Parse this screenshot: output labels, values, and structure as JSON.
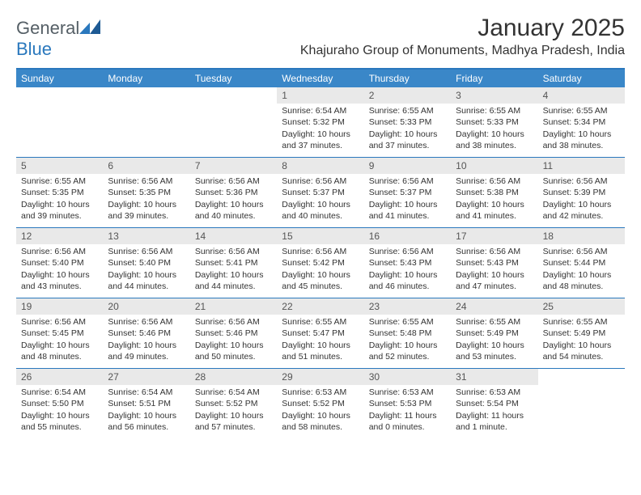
{
  "logo": {
    "text1": "General",
    "text2": "Blue"
  },
  "title": "January 2025",
  "location": "Khajuraho Group of Monuments, Madhya Pradesh, India",
  "colors": {
    "header_bg": "#3a87c8",
    "header_border": "#2a78bd",
    "daynum_bg": "#e9e9e9",
    "text": "#333333",
    "logo_gray": "#555f66",
    "logo_blue": "#2a78bd",
    "page_bg": "#ffffff"
  },
  "daysOfWeek": [
    "Sunday",
    "Monday",
    "Tuesday",
    "Wednesday",
    "Thursday",
    "Friday",
    "Saturday"
  ],
  "weeks": [
    [
      {
        "n": "",
        "lines": []
      },
      {
        "n": "",
        "lines": []
      },
      {
        "n": "",
        "lines": []
      },
      {
        "n": "1",
        "lines": [
          "Sunrise: 6:54 AM",
          "Sunset: 5:32 PM",
          "Daylight: 10 hours and 37 minutes."
        ]
      },
      {
        "n": "2",
        "lines": [
          "Sunrise: 6:55 AM",
          "Sunset: 5:33 PM",
          "Daylight: 10 hours and 37 minutes."
        ]
      },
      {
        "n": "3",
        "lines": [
          "Sunrise: 6:55 AM",
          "Sunset: 5:33 PM",
          "Daylight: 10 hours and 38 minutes."
        ]
      },
      {
        "n": "4",
        "lines": [
          "Sunrise: 6:55 AM",
          "Sunset: 5:34 PM",
          "Daylight: 10 hours and 38 minutes."
        ]
      }
    ],
    [
      {
        "n": "5",
        "lines": [
          "Sunrise: 6:55 AM",
          "Sunset: 5:35 PM",
          "Daylight: 10 hours and 39 minutes."
        ]
      },
      {
        "n": "6",
        "lines": [
          "Sunrise: 6:56 AM",
          "Sunset: 5:35 PM",
          "Daylight: 10 hours and 39 minutes."
        ]
      },
      {
        "n": "7",
        "lines": [
          "Sunrise: 6:56 AM",
          "Sunset: 5:36 PM",
          "Daylight: 10 hours and 40 minutes."
        ]
      },
      {
        "n": "8",
        "lines": [
          "Sunrise: 6:56 AM",
          "Sunset: 5:37 PM",
          "Daylight: 10 hours and 40 minutes."
        ]
      },
      {
        "n": "9",
        "lines": [
          "Sunrise: 6:56 AM",
          "Sunset: 5:37 PM",
          "Daylight: 10 hours and 41 minutes."
        ]
      },
      {
        "n": "10",
        "lines": [
          "Sunrise: 6:56 AM",
          "Sunset: 5:38 PM",
          "Daylight: 10 hours and 41 minutes."
        ]
      },
      {
        "n": "11",
        "lines": [
          "Sunrise: 6:56 AM",
          "Sunset: 5:39 PM",
          "Daylight: 10 hours and 42 minutes."
        ]
      }
    ],
    [
      {
        "n": "12",
        "lines": [
          "Sunrise: 6:56 AM",
          "Sunset: 5:40 PM",
          "Daylight: 10 hours and 43 minutes."
        ]
      },
      {
        "n": "13",
        "lines": [
          "Sunrise: 6:56 AM",
          "Sunset: 5:40 PM",
          "Daylight: 10 hours and 44 minutes."
        ]
      },
      {
        "n": "14",
        "lines": [
          "Sunrise: 6:56 AM",
          "Sunset: 5:41 PM",
          "Daylight: 10 hours and 44 minutes."
        ]
      },
      {
        "n": "15",
        "lines": [
          "Sunrise: 6:56 AM",
          "Sunset: 5:42 PM",
          "Daylight: 10 hours and 45 minutes."
        ]
      },
      {
        "n": "16",
        "lines": [
          "Sunrise: 6:56 AM",
          "Sunset: 5:43 PM",
          "Daylight: 10 hours and 46 minutes."
        ]
      },
      {
        "n": "17",
        "lines": [
          "Sunrise: 6:56 AM",
          "Sunset: 5:43 PM",
          "Daylight: 10 hours and 47 minutes."
        ]
      },
      {
        "n": "18",
        "lines": [
          "Sunrise: 6:56 AM",
          "Sunset: 5:44 PM",
          "Daylight: 10 hours and 48 minutes."
        ]
      }
    ],
    [
      {
        "n": "19",
        "lines": [
          "Sunrise: 6:56 AM",
          "Sunset: 5:45 PM",
          "Daylight: 10 hours and 48 minutes."
        ]
      },
      {
        "n": "20",
        "lines": [
          "Sunrise: 6:56 AM",
          "Sunset: 5:46 PM",
          "Daylight: 10 hours and 49 minutes."
        ]
      },
      {
        "n": "21",
        "lines": [
          "Sunrise: 6:56 AM",
          "Sunset: 5:46 PM",
          "Daylight: 10 hours and 50 minutes."
        ]
      },
      {
        "n": "22",
        "lines": [
          "Sunrise: 6:55 AM",
          "Sunset: 5:47 PM",
          "Daylight: 10 hours and 51 minutes."
        ]
      },
      {
        "n": "23",
        "lines": [
          "Sunrise: 6:55 AM",
          "Sunset: 5:48 PM",
          "Daylight: 10 hours and 52 minutes."
        ]
      },
      {
        "n": "24",
        "lines": [
          "Sunrise: 6:55 AM",
          "Sunset: 5:49 PM",
          "Daylight: 10 hours and 53 minutes."
        ]
      },
      {
        "n": "25",
        "lines": [
          "Sunrise: 6:55 AM",
          "Sunset: 5:49 PM",
          "Daylight: 10 hours and 54 minutes."
        ]
      }
    ],
    [
      {
        "n": "26",
        "lines": [
          "Sunrise: 6:54 AM",
          "Sunset: 5:50 PM",
          "Daylight: 10 hours and 55 minutes."
        ]
      },
      {
        "n": "27",
        "lines": [
          "Sunrise: 6:54 AM",
          "Sunset: 5:51 PM",
          "Daylight: 10 hours and 56 minutes."
        ]
      },
      {
        "n": "28",
        "lines": [
          "Sunrise: 6:54 AM",
          "Sunset: 5:52 PM",
          "Daylight: 10 hours and 57 minutes."
        ]
      },
      {
        "n": "29",
        "lines": [
          "Sunrise: 6:53 AM",
          "Sunset: 5:52 PM",
          "Daylight: 10 hours and 58 minutes."
        ]
      },
      {
        "n": "30",
        "lines": [
          "Sunrise: 6:53 AM",
          "Sunset: 5:53 PM",
          "Daylight: 11 hours and 0 minutes."
        ]
      },
      {
        "n": "31",
        "lines": [
          "Sunrise: 6:53 AM",
          "Sunset: 5:54 PM",
          "Daylight: 11 hours and 1 minute."
        ]
      },
      {
        "n": "",
        "lines": []
      }
    ]
  ]
}
